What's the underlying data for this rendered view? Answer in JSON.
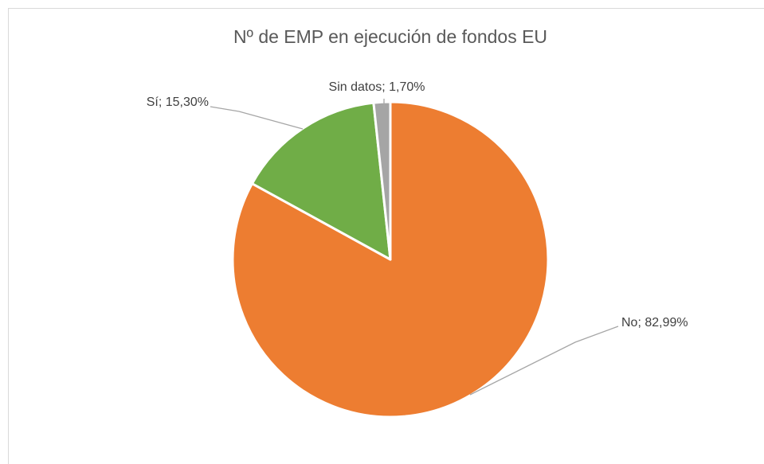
{
  "chart_data": {
    "type": "pie",
    "title": "Nº de EMP en ejecución de fondos EU",
    "categories": [
      "No",
      "Sí",
      "Sin datos"
    ],
    "values": [
      82.99,
      15.3,
      1.7
    ],
    "value_labels": [
      "No; 82,99%",
      "Sí; 15,30%",
      "Sin datos; 1,70%"
    ],
    "colors": [
      "#ed7d31",
      "#70ad47",
      "#a5a5a5"
    ]
  }
}
